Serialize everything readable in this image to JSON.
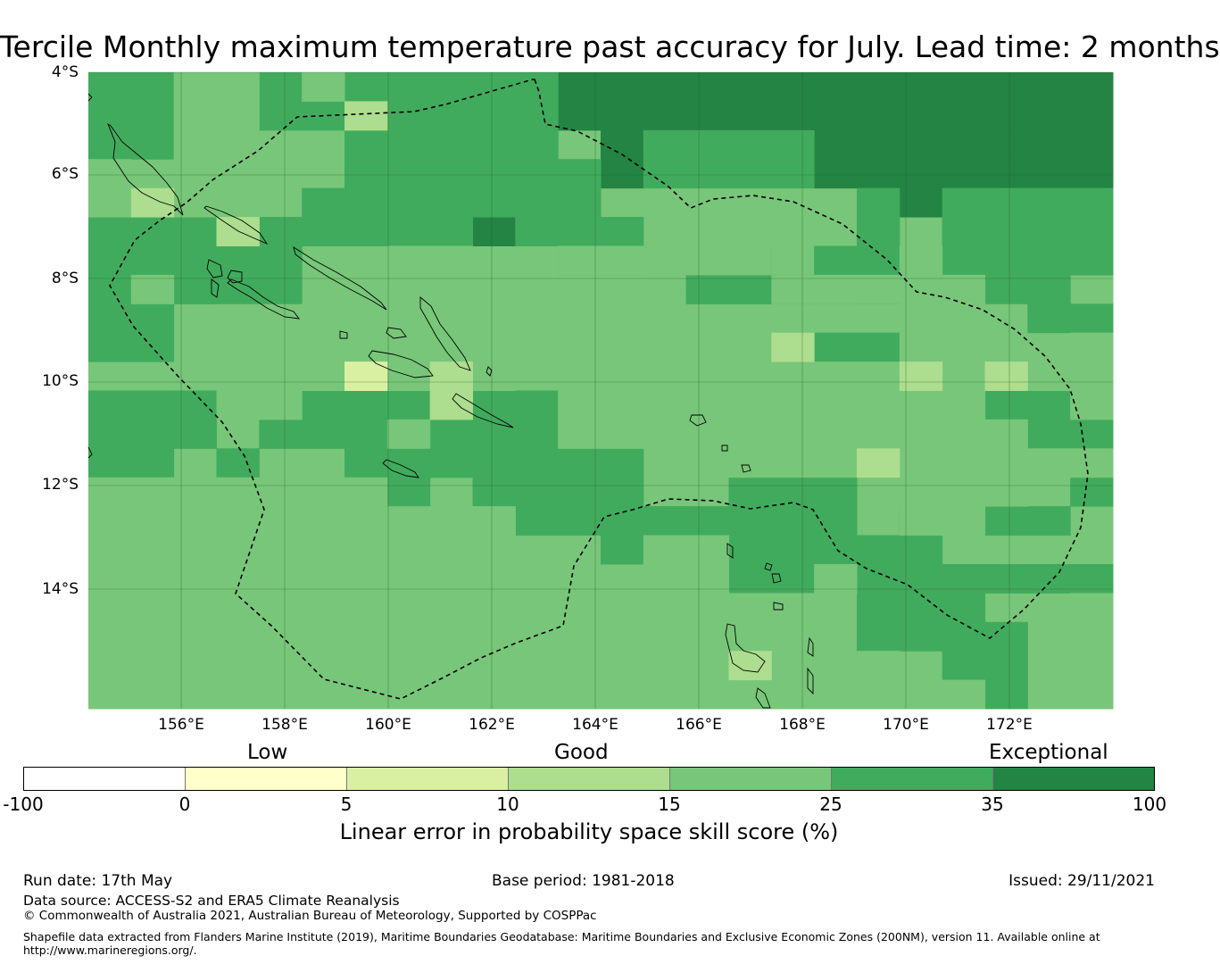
{
  "title": "Tercile Monthly maximum temperature past accuracy for July. Lead time: 2 months",
  "map": {
    "lat_labels": [
      "4°S",
      "6°S",
      "8°S",
      "10°S",
      "12°S",
      "14°S"
    ],
    "lon_labels": [
      "156°E",
      "158°E",
      "160°E",
      "162°E",
      "164°E",
      "166°E",
      "168°E",
      "170°E",
      "172°E"
    ],
    "legend_colors": [
      "#ffffff",
      "#ffffcc",
      "#d9f0a3",
      "#addd8e",
      "#78c679",
      "#41ab5d",
      "#238443"
    ]
  },
  "colorbar": {
    "categories": [
      "Low",
      "Good",
      "Exceptional"
    ],
    "ticks": [
      "-100",
      "0",
      "5",
      "10",
      "15",
      "25",
      "35",
      "100"
    ],
    "label": "Linear error in probability space skill score (%)"
  },
  "footer": {
    "run_date": "Run date: 17th May",
    "base_period": "Base period: 1981-2018",
    "issued": "Issued: 29/11/2021",
    "data_source": "Data source: ACCESS-S2 and ERA5 Climate Reanalysis",
    "copyright": "© Commonwealth of Australia 2021, Australian Bureau of Meteorology, Supported by COSPPac",
    "shapefile_1": "Shapefile data extracted from Flanders Marine Institute (2019), Maritime Boundaries Geodatabase: Maritime Boundaries and Exclusive Economic Zones (200NM), version 11. Available online at",
    "shapefile_2": "http://www.marineregions.org/."
  }
}
